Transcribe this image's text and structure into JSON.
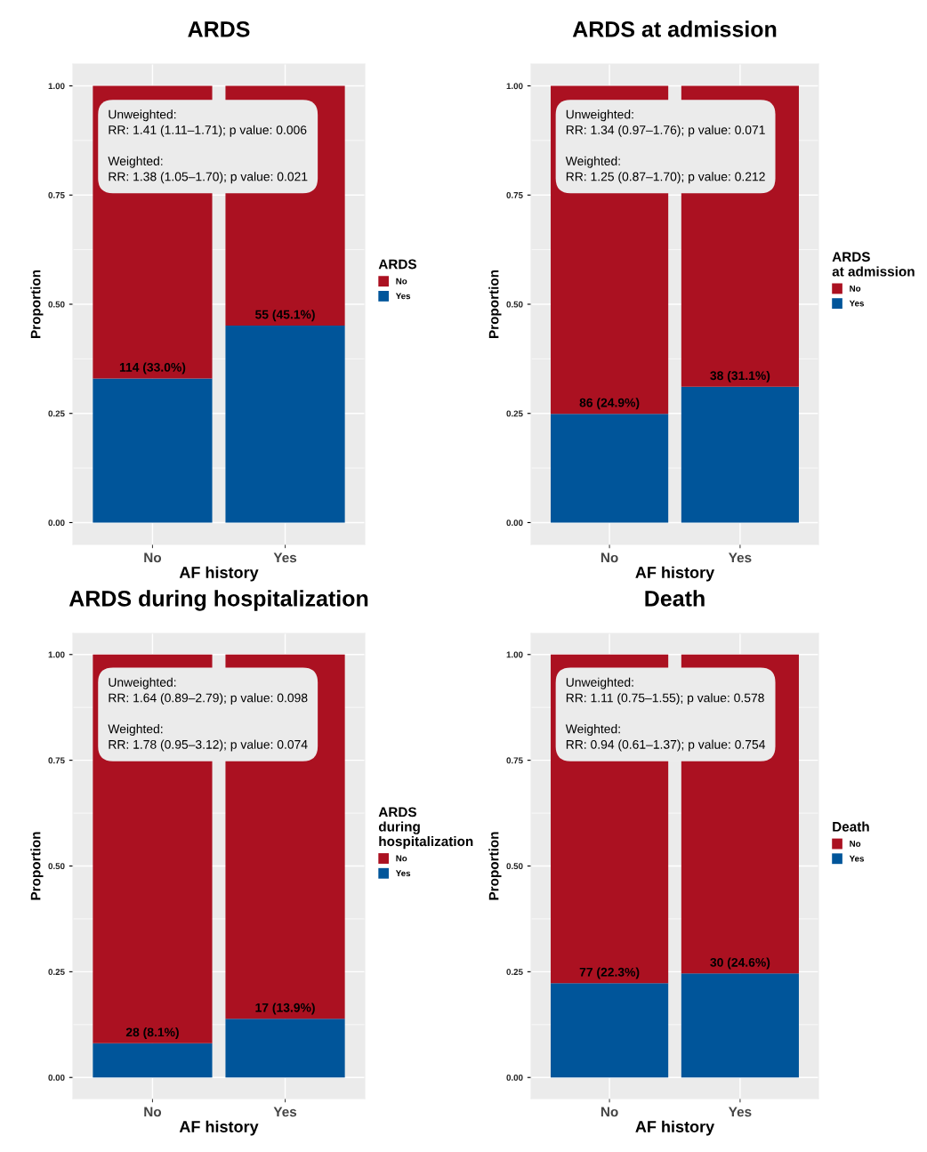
{
  "chart_data": [
    {
      "type": "bar",
      "title": "ARDS",
      "xlabel": "AF history",
      "ylabel": "Proportion",
      "legend_title": "ARDS",
      "categories": [
        "No",
        "Yes"
      ],
      "stacked": true,
      "legend": "right",
      "grid": true,
      "ylim": [
        -0.05,
        1.05
      ],
      "yticks": [
        {
          "value": 0,
          "label": "0.00"
        },
        {
          "value": 0.25,
          "label": "0.25"
        },
        {
          "value": 0.5,
          "label": "0.50"
        },
        {
          "value": 0.75,
          "label": "0.75"
        },
        {
          "value": 1,
          "label": "1.00"
        }
      ],
      "series": [
        {
          "name": "Yes",
          "color": "#00559a",
          "values": [
            0.33,
            0.451
          ],
          "value_labels": [
            "114 (33.0%)",
            "55 (45.1%)"
          ]
        },
        {
          "name": "No",
          "color": "#ab1121",
          "values": [
            0.67,
            0.549
          ]
        }
      ],
      "annotations": [
        "Unweighted:\nRR: 1.41 (1.11–1.71); p value: 0.006\n\nWeighted:\nRR: 1.38 (1.05–1.70); p value: 0.021"
      ]
    },
    {
      "type": "bar",
      "title": "ARDS at admission",
      "xlabel": "AF history",
      "ylabel": "Proportion",
      "legend_title": "ARDS\nat admission",
      "categories": [
        "No",
        "Yes"
      ],
      "stacked": true,
      "legend": "right",
      "grid": true,
      "ylim": [
        -0.05,
        1.05
      ],
      "yticks": [
        {
          "value": 0,
          "label": "0.00"
        },
        {
          "value": 0.25,
          "label": "0.25"
        },
        {
          "value": 0.5,
          "label": "0.50"
        },
        {
          "value": 0.75,
          "label": "0.75"
        },
        {
          "value": 1,
          "label": "1.00"
        }
      ],
      "series": [
        {
          "name": "Yes",
          "color": "#00559a",
          "values": [
            0.249,
            0.311
          ],
          "value_labels": [
            "86 (24.9%)",
            "38 (31.1%)"
          ]
        },
        {
          "name": "No",
          "color": "#ab1121",
          "values": [
            0.751,
            0.689
          ]
        }
      ],
      "annotations": [
        "Unweighted:\nRR: 1.34 (0.97–1.76); p value: 0.071\n\nWeighted:\nRR: 1.25 (0.87–1.70); p value: 0.212"
      ]
    },
    {
      "type": "bar",
      "title": "ARDS during hospitalization",
      "xlabel": "AF history",
      "ylabel": "Proportion",
      "legend_title": "ARDS\nduring\nhospitalization",
      "categories": [
        "No",
        "Yes"
      ],
      "stacked": true,
      "legend": "right",
      "grid": true,
      "ylim": [
        -0.05,
        1.05
      ],
      "yticks": [
        {
          "value": 0,
          "label": "0.00"
        },
        {
          "value": 0.25,
          "label": "0.25"
        },
        {
          "value": 0.5,
          "label": "0.50"
        },
        {
          "value": 0.75,
          "label": "0.75"
        },
        {
          "value": 1,
          "label": "1.00"
        }
      ],
      "series": [
        {
          "name": "Yes",
          "color": "#00559a",
          "values": [
            0.081,
            0.139
          ],
          "value_labels": [
            "28 (8.1%)",
            "17 (13.9%)"
          ]
        },
        {
          "name": "No",
          "color": "#ab1121",
          "values": [
            0.919,
            0.861
          ]
        }
      ],
      "annotations": [
        "Unweighted:\nRR: 1.64 (0.89–2.79); p value: 0.098\n\nWeighted:\nRR: 1.78 (0.95–3.12); p value: 0.074"
      ]
    },
    {
      "type": "bar",
      "title": "Death",
      "xlabel": "AF history",
      "ylabel": "Proportion",
      "legend_title": "Death",
      "categories": [
        "No",
        "Yes"
      ],
      "stacked": true,
      "legend": "right",
      "grid": true,
      "ylim": [
        -0.05,
        1.05
      ],
      "yticks": [
        {
          "value": 0,
          "label": "0.00"
        },
        {
          "value": 0.25,
          "label": "0.25"
        },
        {
          "value": 0.5,
          "label": "0.50"
        },
        {
          "value": 0.75,
          "label": "0.75"
        },
        {
          "value": 1,
          "label": "1.00"
        }
      ],
      "series": [
        {
          "name": "Yes",
          "color": "#00559a",
          "values": [
            0.223,
            0.246
          ],
          "value_labels": [
            "77 (22.3%)",
            "30 (24.6%)"
          ]
        },
        {
          "name": "No",
          "color": "#ab1121",
          "values": [
            0.777,
            0.754
          ]
        }
      ],
      "annotations": [
        "Unweighted:\nRR: 1.11 (0.75–1.55); p value: 0.578\n\nWeighted:\nRR: 0.94 (0.61–1.37); p value: 0.754"
      ]
    }
  ]
}
